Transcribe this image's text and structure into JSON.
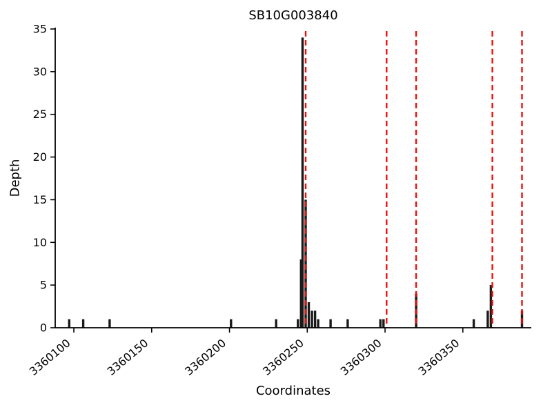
{
  "figure": {
    "background": "#ffffff"
  },
  "chart_data": {
    "type": "bar",
    "title": "SB10G003840",
    "xlabel": "Coordinates",
    "ylabel": "Depth",
    "xlim": [
      3360088,
      3360394
    ],
    "ylim": [
      0,
      35
    ],
    "xticks": [
      3360100,
      3360150,
      3360200,
      3360250,
      3360300,
      3360350
    ],
    "yticks": [
      0,
      5,
      10,
      15,
      20,
      25,
      30,
      35
    ],
    "grid": false,
    "legend_position": "none",
    "bar_color": "#1a1a1a",
    "vline_color": "#e8110e",
    "vline_style": "dashed",
    "bars": [
      {
        "x": 3360097,
        "depth": 1
      },
      {
        "x": 3360106,
        "depth": 1
      },
      {
        "x": 3360123,
        "depth": 1
      },
      {
        "x": 3360201,
        "depth": 1
      },
      {
        "x": 3360230,
        "depth": 1
      },
      {
        "x": 3360244,
        "depth": 1
      },
      {
        "x": 3360246,
        "depth": 8
      },
      {
        "x": 3360247,
        "depth": 34
      },
      {
        "x": 3360249,
        "depth": 15
      },
      {
        "x": 3360251,
        "depth": 3
      },
      {
        "x": 3360253,
        "depth": 2
      },
      {
        "x": 3360255,
        "depth": 2
      },
      {
        "x": 3360257,
        "depth": 1
      },
      {
        "x": 3360265,
        "depth": 1
      },
      {
        "x": 3360276,
        "depth": 1
      },
      {
        "x": 3360297,
        "depth": 1
      },
      {
        "x": 3360299,
        "depth": 1
      },
      {
        "x": 3360320,
        "depth": 4
      },
      {
        "x": 3360357,
        "depth": 1
      },
      {
        "x": 3360366,
        "depth": 2
      },
      {
        "x": 3360368,
        "depth": 5
      },
      {
        "x": 3360388,
        "depth": 2
      }
    ],
    "vlines": [
      3360249,
      3360301,
      3360320,
      3360369,
      3360388
    ]
  }
}
